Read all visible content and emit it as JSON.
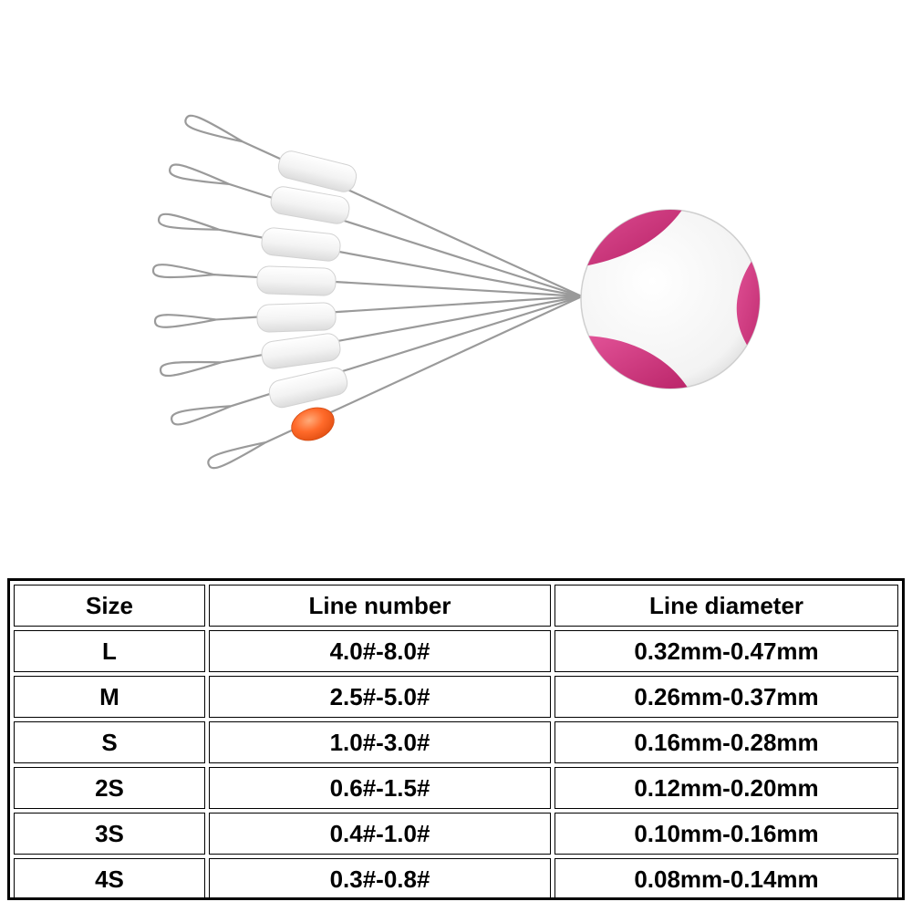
{
  "table": {
    "headers": [
      "Size",
      "Line number",
      "Line diameter"
    ],
    "rows": [
      [
        "L",
        "4.0#-8.0#",
        "0.32mm-0.47mm"
      ],
      [
        "M",
        "2.5#-5.0#",
        "0.26mm-0.37mm"
      ],
      [
        "S",
        "1.0#-3.0#",
        "0.16mm-0.28mm"
      ],
      [
        "2S",
        "0.6#-1.5#",
        "0.12mm-0.20mm"
      ],
      [
        "3S",
        "0.4#-1.0#",
        "0.10mm-0.16mm"
      ],
      [
        "4S",
        "0.3#-0.8#",
        "0.08mm-0.14mm"
      ]
    ]
  },
  "colors": {
    "holder_accent": "#d6337a",
    "bead_orange": "#ff6a2a",
    "stopper_white": "#f4f4f4",
    "line_gray": "#9a9a9a"
  },
  "icons": {
    "holder": "round-holder-icon",
    "stopper": "rubber-stopper-icon",
    "bead": "orange-bead-icon"
  }
}
